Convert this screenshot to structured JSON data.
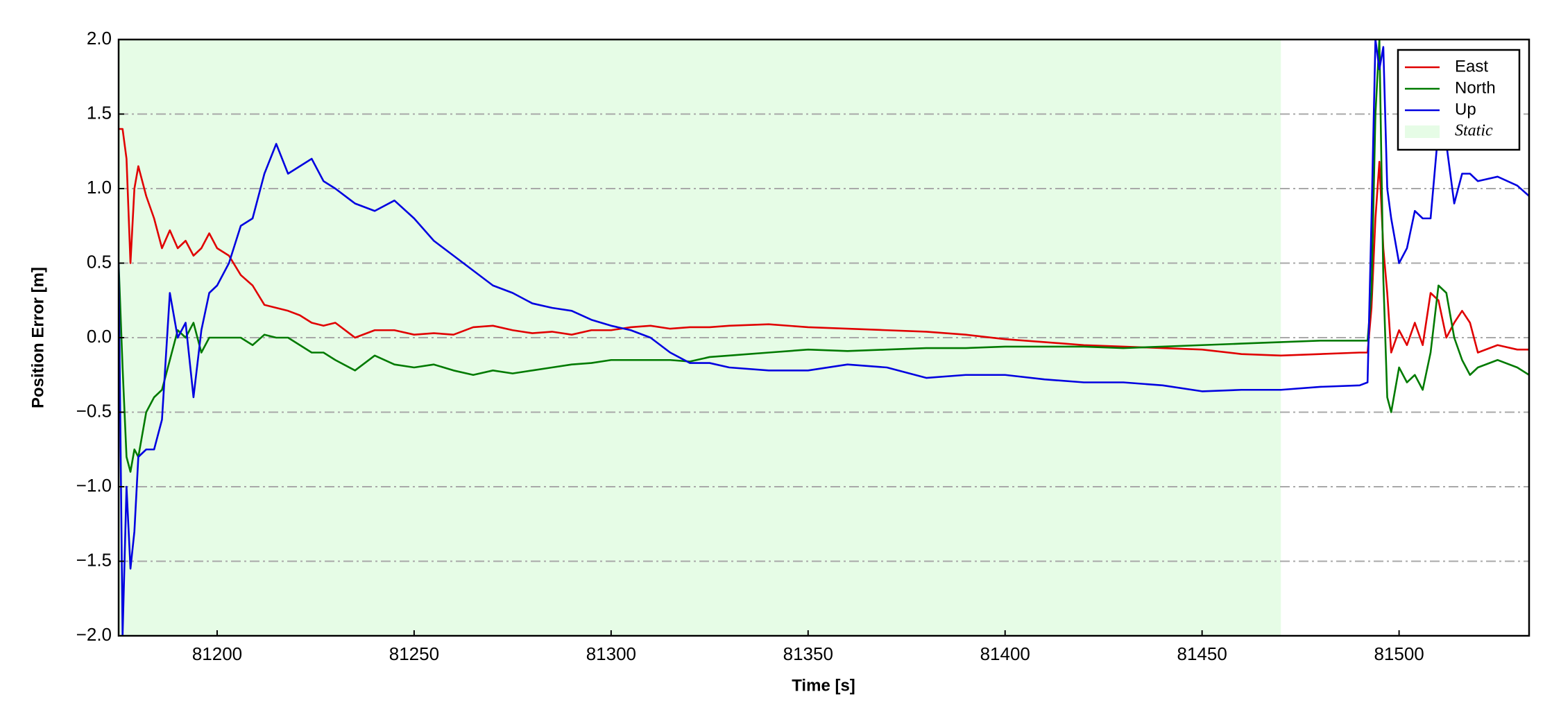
{
  "chart_data": {
    "type": "line",
    "xlabel": "Time [s]",
    "ylabel": "Position Error [m]",
    "xlim": [
      81175,
      81533
    ],
    "ylim": [
      -2,
      2
    ],
    "xticks": [
      81200,
      81250,
      81300,
      81350,
      81400,
      81450,
      81500
    ],
    "yticks": [
      {
        "value": -2,
        "label": "−2.0"
      },
      {
        "value": -1.5,
        "label": "−1.5"
      },
      {
        "value": -1,
        "label": "−1.0"
      },
      {
        "value": -0.5,
        "label": "−0.5"
      },
      {
        "value": 0,
        "label": "0.0"
      },
      {
        "value": 0.5,
        "label": "0.5"
      },
      {
        "value": 1,
        "label": "1.0"
      },
      {
        "value": 1.5,
        "label": "1.5"
      },
      {
        "value": 2,
        "label": "2.0"
      }
    ],
    "grid": true,
    "legend": "upper right",
    "shaded_regions": [
      {
        "name": "Static",
        "start": 81175,
        "end": 81470,
        "color": "#e6fce6"
      }
    ],
    "x": [
      81175,
      81176,
      81177,
      81178,
      81179,
      81180,
      81182,
      81184,
      81186,
      81188,
      81190,
      81192,
      81194,
      81196,
      81198,
      81200,
      81203,
      81206,
      81209,
      81212,
      81215,
      81218,
      81221,
      81224,
      81227,
      81230,
      81235,
      81240,
      81245,
      81250,
      81255,
      81260,
      81265,
      81270,
      81275,
      81280,
      81285,
      81290,
      81295,
      81300,
      81305,
      81310,
      81315,
      81320,
      81325,
      81330,
      81340,
      81350,
      81360,
      81370,
      81380,
      81390,
      81400,
      81410,
      81420,
      81430,
      81440,
      81450,
      81460,
      81470,
      81480,
      81490,
      81492,
      81493,
      81494,
      81495,
      81496,
      81497,
      81498,
      81500,
      81502,
      81504,
      81506,
      81508,
      81510,
      81512,
      81514,
      81516,
      81518,
      81520,
      81525,
      81530,
      81533
    ],
    "series": [
      {
        "name": "East",
        "color": "#e00000",
        "values": [
          1.4,
          1.4,
          1.2,
          0.5,
          1.0,
          1.15,
          0.95,
          0.8,
          0.6,
          0.72,
          0.6,
          0.65,
          0.55,
          0.6,
          0.7,
          0.6,
          0.55,
          0.42,
          0.35,
          0.22,
          0.2,
          0.18,
          0.15,
          0.1,
          0.08,
          0.1,
          0.0,
          0.05,
          0.05,
          0.02,
          0.03,
          0.02,
          0.07,
          0.08,
          0.05,
          0.03,
          0.04,
          0.02,
          0.05,
          0.05,
          0.07,
          0.08,
          0.06,
          0.07,
          0.07,
          0.08,
          0.09,
          0.07,
          0.06,
          0.05,
          0.04,
          0.02,
          -0.01,
          -0.03,
          -0.05,
          -0.06,
          -0.07,
          -0.08,
          -0.11,
          -0.12,
          -0.11,
          -0.1,
          -0.1,
          0.2,
          0.8,
          1.18,
          0.6,
          0.3,
          -0.1,
          0.05,
          -0.05,
          0.1,
          -0.05,
          0.3,
          0.25,
          0.0,
          0.1,
          0.18,
          0.1,
          -0.1,
          -0.05,
          -0.08,
          -0.08
        ]
      },
      {
        "name": "North",
        "color": "#007a00",
        "values": [
          0.5,
          -0.2,
          -0.8,
          -0.9,
          -0.75,
          -0.8,
          -0.5,
          -0.4,
          -0.35,
          -0.15,
          0.05,
          0.0,
          0.1,
          -0.1,
          0.0,
          0.0,
          0.0,
          0.0,
          -0.05,
          0.02,
          0.0,
          0.0,
          -0.05,
          -0.1,
          -0.1,
          -0.15,
          -0.22,
          -0.12,
          -0.18,
          -0.2,
          -0.18,
          -0.22,
          -0.25,
          -0.22,
          -0.24,
          -0.22,
          -0.2,
          -0.18,
          -0.17,
          -0.15,
          -0.15,
          -0.15,
          -0.15,
          -0.16,
          -0.13,
          -0.12,
          -0.1,
          -0.08,
          -0.09,
          -0.08,
          -0.07,
          -0.07,
          -0.06,
          -0.06,
          -0.06,
          -0.07,
          -0.06,
          -0.05,
          -0.04,
          -0.03,
          -0.02,
          -0.02,
          -0.02,
          0.3,
          1.5,
          2.0,
          0.4,
          -0.4,
          -0.5,
          -0.2,
          -0.3,
          -0.25,
          -0.35,
          -0.1,
          0.35,
          0.3,
          0.0,
          -0.15,
          -0.25,
          -0.2,
          -0.15,
          -0.2,
          -0.25
        ]
      },
      {
        "name": "Up",
        "color": "#0000e0",
        "values": [
          0.5,
          -2.0,
          -1.0,
          -1.55,
          -1.3,
          -0.8,
          -0.75,
          -0.75,
          -0.55,
          0.3,
          0.0,
          0.1,
          -0.4,
          0.05,
          0.3,
          0.35,
          0.5,
          0.75,
          0.8,
          1.1,
          1.3,
          1.1,
          1.15,
          1.2,
          1.05,
          1.0,
          0.9,
          0.85,
          0.92,
          0.8,
          0.65,
          0.55,
          0.45,
          0.35,
          0.3,
          0.23,
          0.2,
          0.18,
          0.12,
          0.08,
          0.05,
          0.0,
          -0.1,
          -0.17,
          -0.17,
          -0.2,
          -0.22,
          -0.22,
          -0.18,
          -0.2,
          -0.27,
          -0.25,
          -0.25,
          -0.28,
          -0.3,
          -0.3,
          -0.32,
          -0.36,
          -0.35,
          -0.35,
          -0.33,
          -0.32,
          -0.3,
          0.8,
          2.0,
          1.8,
          1.95,
          1.0,
          0.8,
          0.5,
          0.6,
          0.85,
          0.8,
          0.8,
          1.4,
          1.3,
          0.9,
          1.1,
          1.1,
          1.05,
          1.08,
          1.02,
          0.95
        ]
      }
    ]
  }
}
